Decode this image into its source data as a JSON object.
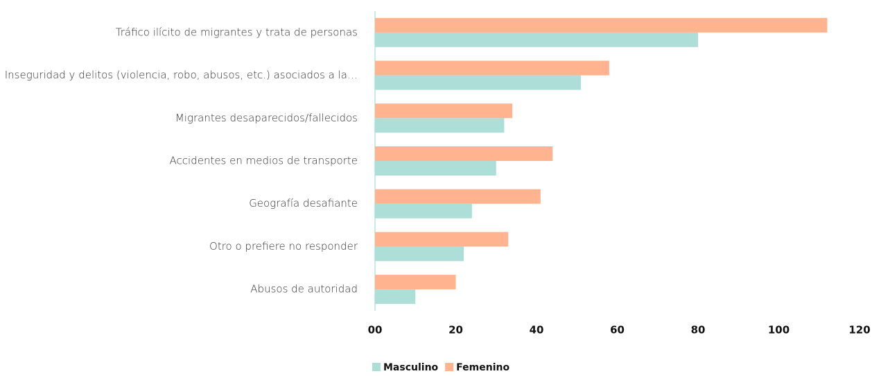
{
  "chart_data": {
    "type": "hbar",
    "categories": [
      "Tráfico ilícito de migrantes y trata de personas",
      "Inseguridad y delitos (violencia, robo, abusos, etc.) asociados a la…",
      "Migrantes desaparecidos/fallecidos",
      "Accidentes en medios de transporte",
      "Geografía desafiante",
      "Otro o prefiere no responder",
      "Abusos de autoridad"
    ],
    "series": [
      {
        "name": "Masculino",
        "color": "#aeded8",
        "values": [
          80,
          51,
          32,
          30,
          24,
          22,
          10
        ]
      },
      {
        "name": "Femenino",
        "color": "#ffb38e",
        "values": [
          112,
          58,
          34,
          44,
          41,
          33,
          20
        ]
      }
    ],
    "xlim": [
      0,
      120
    ],
    "xticks": [
      {
        "value": 0,
        "label": "00"
      },
      20,
      40,
      60,
      80,
      100,
      120
    ],
    "grid": false,
    "legend": "bottom"
  }
}
